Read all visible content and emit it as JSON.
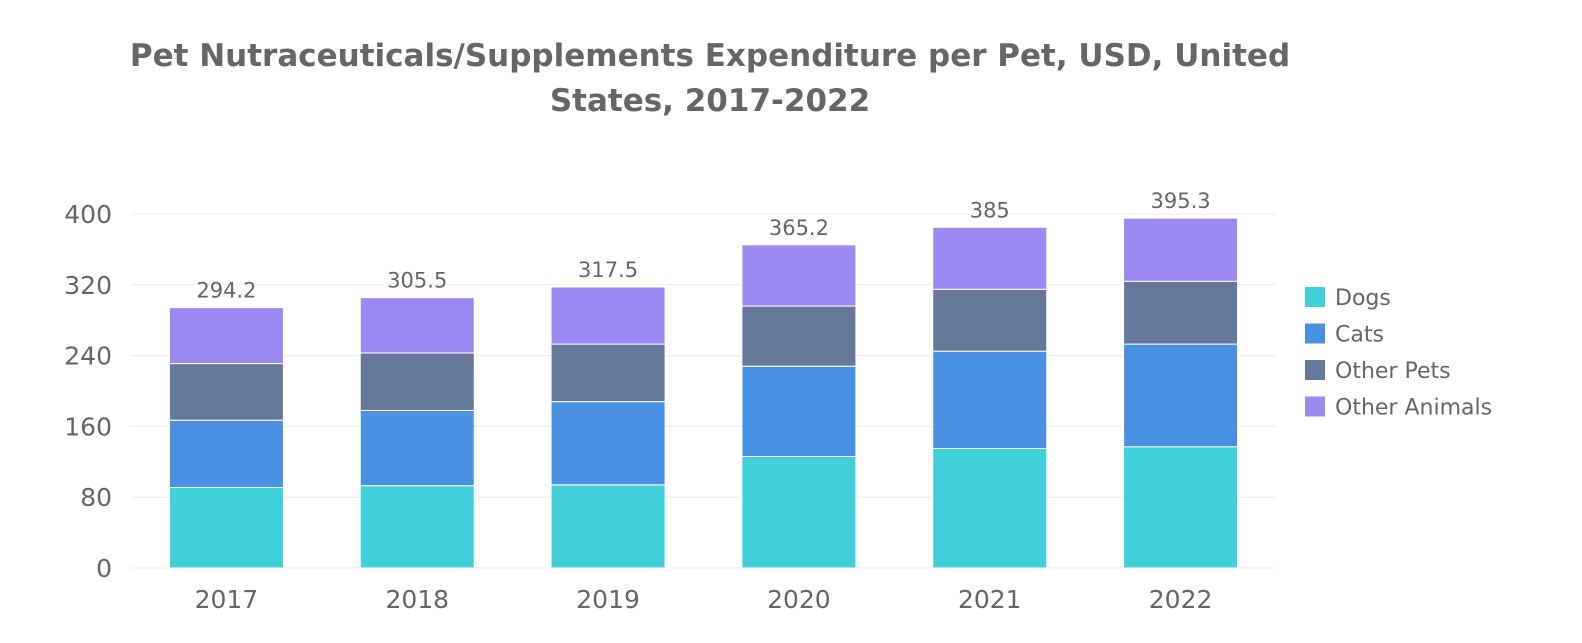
{
  "chart_data": {
    "type": "bar",
    "stacked": true,
    "title": "Pet Nutraceuticals/Supplements Expenditure per Pet, USD, United States, 2017-2022",
    "title_lines": [
      "Pet Nutraceuticals/Supplements Expenditure per Pet, USD, United",
      "States, 2017-2022"
    ],
    "xlabel": "",
    "ylabel": "",
    "categories": [
      "2017",
      "2018",
      "2019",
      "2020",
      "2021",
      "2022"
    ],
    "ylim": [
      0,
      400
    ],
    "yticks": [
      "0",
      "80",
      "160",
      "240",
      "320",
      "400"
    ],
    "grid": true,
    "legend_position": "right",
    "series": [
      {
        "name": "Dogs",
        "color": "#40d0d9",
        "values": [
          91,
          93,
          94,
          126,
          135,
          137
        ]
      },
      {
        "name": "Cats",
        "color": "#4a90e2",
        "values": [
          76,
          85,
          94,
          102,
          110,
          116
        ]
      },
      {
        "name": "Other Pets",
        "color": "#667899",
        "values": [
          64,
          65,
          65,
          68,
          70,
          71
        ]
      },
      {
        "name": "Other Animals",
        "color": "#9b88f0",
        "values": [
          63.2,
          62.5,
          64.5,
          69.2,
          70,
          71.3
        ]
      }
    ],
    "totals": [
      "294.2",
      "305.5",
      "317.5",
      "365.2",
      "385",
      "395.3"
    ]
  }
}
